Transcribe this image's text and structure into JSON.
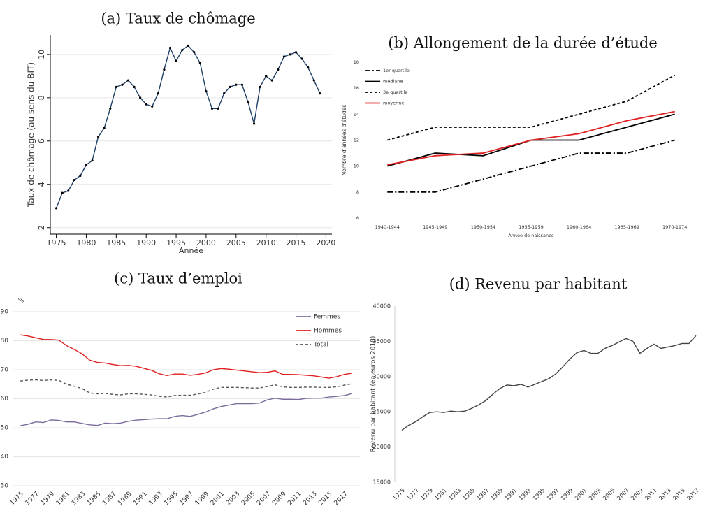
{
  "chart_data": [
    {
      "type": "line",
      "title": "(a) Taux de chômage",
      "xlabel": "Année",
      "ylabel": "Taux de chômage (au sens du BIT)",
      "x": [
        1975,
        1976,
        1977,
        1978,
        1979,
        1980,
        1981,
        1982,
        1983,
        1984,
        1985,
        1986,
        1987,
        1988,
        1989,
        1990,
        1991,
        1992,
        1993,
        1994,
        1995,
        1996,
        1997,
        1998,
        1999,
        2000,
        2001,
        2002,
        2003,
        2004,
        2005,
        2006,
        2007,
        2008,
        2009,
        2010,
        2011,
        2012,
        2013,
        2014,
        2015,
        2016,
        2017,
        2018,
        2019
      ],
      "values": [
        2.9,
        3.6,
        3.7,
        4.2,
        4.4,
        4.9,
        5.1,
        6.2,
        6.6,
        7.5,
        8.5,
        8.6,
        8.8,
        8.5,
        8.0,
        7.7,
        7.6,
        8.2,
        9.3,
        10.3,
        9.7,
        10.2,
        10.4,
        10.1,
        9.6,
        8.3,
        7.5,
        7.5,
        8.2,
        8.5,
        8.6,
        8.6,
        7.8,
        6.8,
        8.5,
        9.0,
        8.8,
        9.3,
        9.9,
        10.0,
        10.1,
        9.8,
        9.4,
        8.8,
        8.2
      ],
      "color": "#1f3f66",
      "markers": true,
      "xlim": [
        1974,
        2021
      ],
      "xticks": [
        1975,
        1980,
        1985,
        1990,
        1995,
        2000,
        2005,
        2010,
        2015,
        2020
      ],
      "ylim": [
        1.7,
        10.9
      ],
      "yticks": [
        2,
        4,
        6,
        8,
        10
      ],
      "grid": true
    },
    {
      "type": "line",
      "title": "(b) Allongement de la durée d’étude",
      "xlabel": "Année de naissance",
      "ylabel": "Nombre d’années d’études",
      "categories": [
        "1940-1944",
        "1945-1949",
        "1950-1954",
        "1955-1959",
        "1960-1964",
        "1965-1969",
        "1970-1974"
      ],
      "series": [
        {
          "name": "1er quartile",
          "color": "#000000",
          "style": "dashdot",
          "values": [
            8,
            8,
            9,
            10,
            11,
            11,
            12
          ]
        },
        {
          "name": "médiane",
          "color": "#000000",
          "style": "solid",
          "values": [
            10,
            11,
            10.8,
            12,
            12,
            13,
            14
          ]
        },
        {
          "name": "3e quartile",
          "color": "#000000",
          "style": "dashed",
          "values": [
            12,
            13,
            13,
            13,
            14,
            15,
            17
          ]
        },
        {
          "name": "moyenne",
          "color": "#e02020",
          "style": "solid",
          "values": [
            10.1,
            10.8,
            11,
            12,
            12.5,
            13.5,
            14.2
          ]
        }
      ],
      "ylim": [
        6,
        18
      ],
      "yticks": [
        6,
        8,
        10,
        12,
        14,
        16,
        18
      ],
      "legend": "upper left"
    },
    {
      "type": "line",
      "title": "(c) Taux d’emploi",
      "ylabel": "%",
      "x": [
        1975,
        1976,
        1977,
        1978,
        1979,
        1980,
        1981,
        1982,
        1983,
        1984,
        1985,
        1986,
        1987,
        1988,
        1989,
        1990,
        1991,
        1992,
        1993,
        1994,
        1995,
        1996,
        1997,
        1998,
        1999,
        2000,
        2001,
        2002,
        2003,
        2004,
        2005,
        2006,
        2007,
        2008,
        2009,
        2010,
        2011,
        2012,
        2013,
        2014,
        2015,
        2016,
        2017,
        2018
      ],
      "series": [
        {
          "name": "Femmes",
          "color": "#7b6b9c",
          "style": "solid",
          "values": [
            50.7,
            51.2,
            52,
            51.8,
            52.7,
            52.5,
            52,
            52,
            51.5,
            51,
            50.8,
            51.6,
            51.4,
            51.6,
            52.2,
            52.6,
            52.8,
            53,
            53.1,
            53.1,
            53.9,
            54.2,
            53.9,
            54.6,
            55.4,
            56.5,
            57.3,
            57.8,
            58.3,
            58.3,
            58.3,
            58.5,
            59.6,
            60.2,
            59.8,
            59.8,
            59.7,
            60.1,
            60.2,
            60.2,
            60.6,
            60.8,
            61.1,
            61.8
          ]
        },
        {
          "name": "Hommes",
          "color": "#e02020",
          "style": "solid",
          "values": [
            82,
            81.6,
            81,
            80.4,
            80.4,
            80.2,
            78.3,
            77,
            75.5,
            73.3,
            72.5,
            72.3,
            71.8,
            71.4,
            71.5,
            71.2,
            70.5,
            69.8,
            68.6,
            68,
            68.5,
            68.5,
            68.1,
            68.4,
            68.9,
            70,
            70.4,
            70.2,
            69.9,
            69.6,
            69.3,
            69,
            69.1,
            69.6,
            68.4,
            68.4,
            68.3,
            68.1,
            67.9,
            67.5,
            67.1,
            67.6,
            68.4,
            68.8
          ]
        },
        {
          "name": "Total",
          "color": "#555555",
          "style": "dashed",
          "values": [
            66.1,
            66.4,
            66.5,
            66.3,
            66.5,
            66.3,
            65,
            64.3,
            63.5,
            62,
            61.7,
            61.8,
            61.5,
            61.3,
            61.7,
            61.7,
            61.5,
            61.3,
            60.8,
            60.6,
            61.1,
            61.2,
            61.2,
            61.6,
            62.2,
            63.3,
            63.9,
            63.9,
            63.9,
            63.8,
            63.7,
            63.7,
            64.2,
            64.8,
            64.1,
            63.9,
            63.9,
            64,
            64,
            63.9,
            63.9,
            64.1,
            64.7,
            65.2
          ]
        }
      ],
      "xlim": [
        1974,
        2019
      ],
      "xticks": [
        1975,
        1977,
        1979,
        1981,
        1983,
        1985,
        1987,
        1989,
        1991,
        1993,
        1995,
        1997,
        1999,
        2001,
        2003,
        2005,
        2007,
        2009,
        2011,
        2013,
        2015,
        2017
      ],
      "ylim": [
        30,
        90
      ],
      "yticks": [
        30,
        40,
        50,
        60,
        70,
        80,
        90
      ],
      "grid": true,
      "legend": "upper right"
    },
    {
      "type": "line",
      "title": "(d) Revenu par habitant",
      "ylabel": "Revenu par habitant (en euros 2018)",
      "x": [
        1975,
        1976,
        1977,
        1978,
        1979,
        1980,
        1981,
        1982,
        1983,
        1984,
        1985,
        1986,
        1987,
        1988,
        1989,
        1990,
        1991,
        1992,
        1993,
        1994,
        1995,
        1996,
        1997,
        1998,
        1999,
        2000,
        2001,
        2002,
        2003,
        2004,
        2005,
        2006,
        2007,
        2008,
        2009,
        2010,
        2011,
        2012,
        2013,
        2014,
        2015,
        2016,
        2017
      ],
      "values": [
        22400,
        23100,
        23600,
        24300,
        24900,
        25000,
        24900,
        25100,
        25000,
        25100,
        25500,
        26000,
        26600,
        27500,
        28300,
        28800,
        28700,
        28900,
        28500,
        28900,
        29300,
        29700,
        30400,
        31400,
        32500,
        33400,
        33700,
        33300,
        33300,
        34000,
        34400,
        34900,
        35400,
        35000,
        33300,
        34000,
        34600,
        34000,
        34200,
        34400,
        34700,
        34700,
        35800
      ],
      "color": "#444444",
      "xlim": [
        1974,
        2018
      ],
      "xticks": [
        1975,
        1977,
        1979,
        1981,
        1983,
        1985,
        1987,
        1989,
        1991,
        1993,
        1995,
        1997,
        1999,
        2001,
        2003,
        2005,
        2007,
        2009,
        2011,
        2013,
        2015,
        2017
      ],
      "ylim": [
        15000,
        40000
      ],
      "yticks": [
        15000,
        20000,
        25000,
        30000,
        35000,
        40000
      ]
    }
  ]
}
